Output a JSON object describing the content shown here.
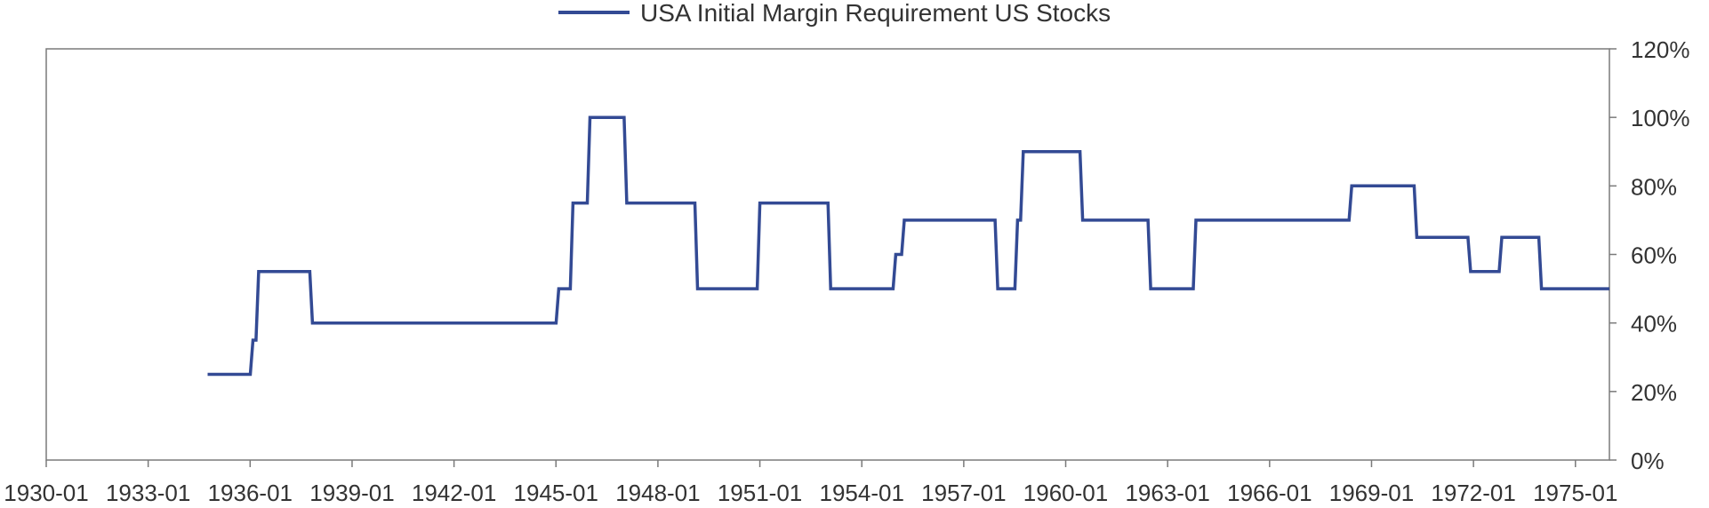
{
  "chart_data": {
    "type": "line",
    "title": "",
    "xlabel": "",
    "ylabel": "",
    "legend": {
      "position": "top-center",
      "entries": [
        "USA Initial Margin Requirement US Stocks"
      ]
    },
    "grid": false,
    "x_axis": {
      "type": "date",
      "range": [
        "1930-01",
        "1976-01"
      ],
      "tick_labels": [
        "1930-01",
        "1933-01",
        "1936-01",
        "1939-01",
        "1942-01",
        "1945-01",
        "1948-01",
        "1951-01",
        "1954-01",
        "1957-01",
        "1960-01",
        "1963-01",
        "1966-01",
        "1969-01",
        "1972-01",
        "1975-01"
      ]
    },
    "y_axis": {
      "position": "right",
      "range": [
        0,
        120
      ],
      "unit": "%",
      "tick_labels": [
        "0%",
        "20%",
        "40%",
        "60%",
        "80%",
        "100%",
        "120%"
      ]
    },
    "series": [
      {
        "name": "USA Initial Margin Requirement US Stocks",
        "color": "#334a94",
        "step": true,
        "points": [
          {
            "x": "1934-10",
            "y": 25
          },
          {
            "x": "1936-02",
            "y": 35
          },
          {
            "x": "1936-04",
            "y": 55
          },
          {
            "x": "1937-11",
            "y": 40
          },
          {
            "x": "1945-02",
            "y": 50
          },
          {
            "x": "1945-07",
            "y": 75
          },
          {
            "x": "1946-01",
            "y": 100
          },
          {
            "x": "1947-02",
            "y": 75
          },
          {
            "x": "1949-03",
            "y": 50
          },
          {
            "x": "1951-01",
            "y": 75
          },
          {
            "x": "1953-02",
            "y": 50
          },
          {
            "x": "1955-01",
            "y": 60
          },
          {
            "x": "1955-04",
            "y": 70
          },
          {
            "x": "1958-01",
            "y": 50
          },
          {
            "x": "1958-08",
            "y": 70
          },
          {
            "x": "1958-10",
            "y": 90
          },
          {
            "x": "1960-07",
            "y": 70
          },
          {
            "x": "1962-07",
            "y": 50
          },
          {
            "x": "1963-11",
            "y": 70
          },
          {
            "x": "1968-06",
            "y": 80
          },
          {
            "x": "1970-05",
            "y": 65
          },
          {
            "x": "1971-12",
            "y": 55
          },
          {
            "x": "1972-11",
            "y": 65
          },
          {
            "x": "1974-01",
            "y": 50
          },
          {
            "x": "1976-01",
            "y": 50
          }
        ]
      }
    ]
  }
}
